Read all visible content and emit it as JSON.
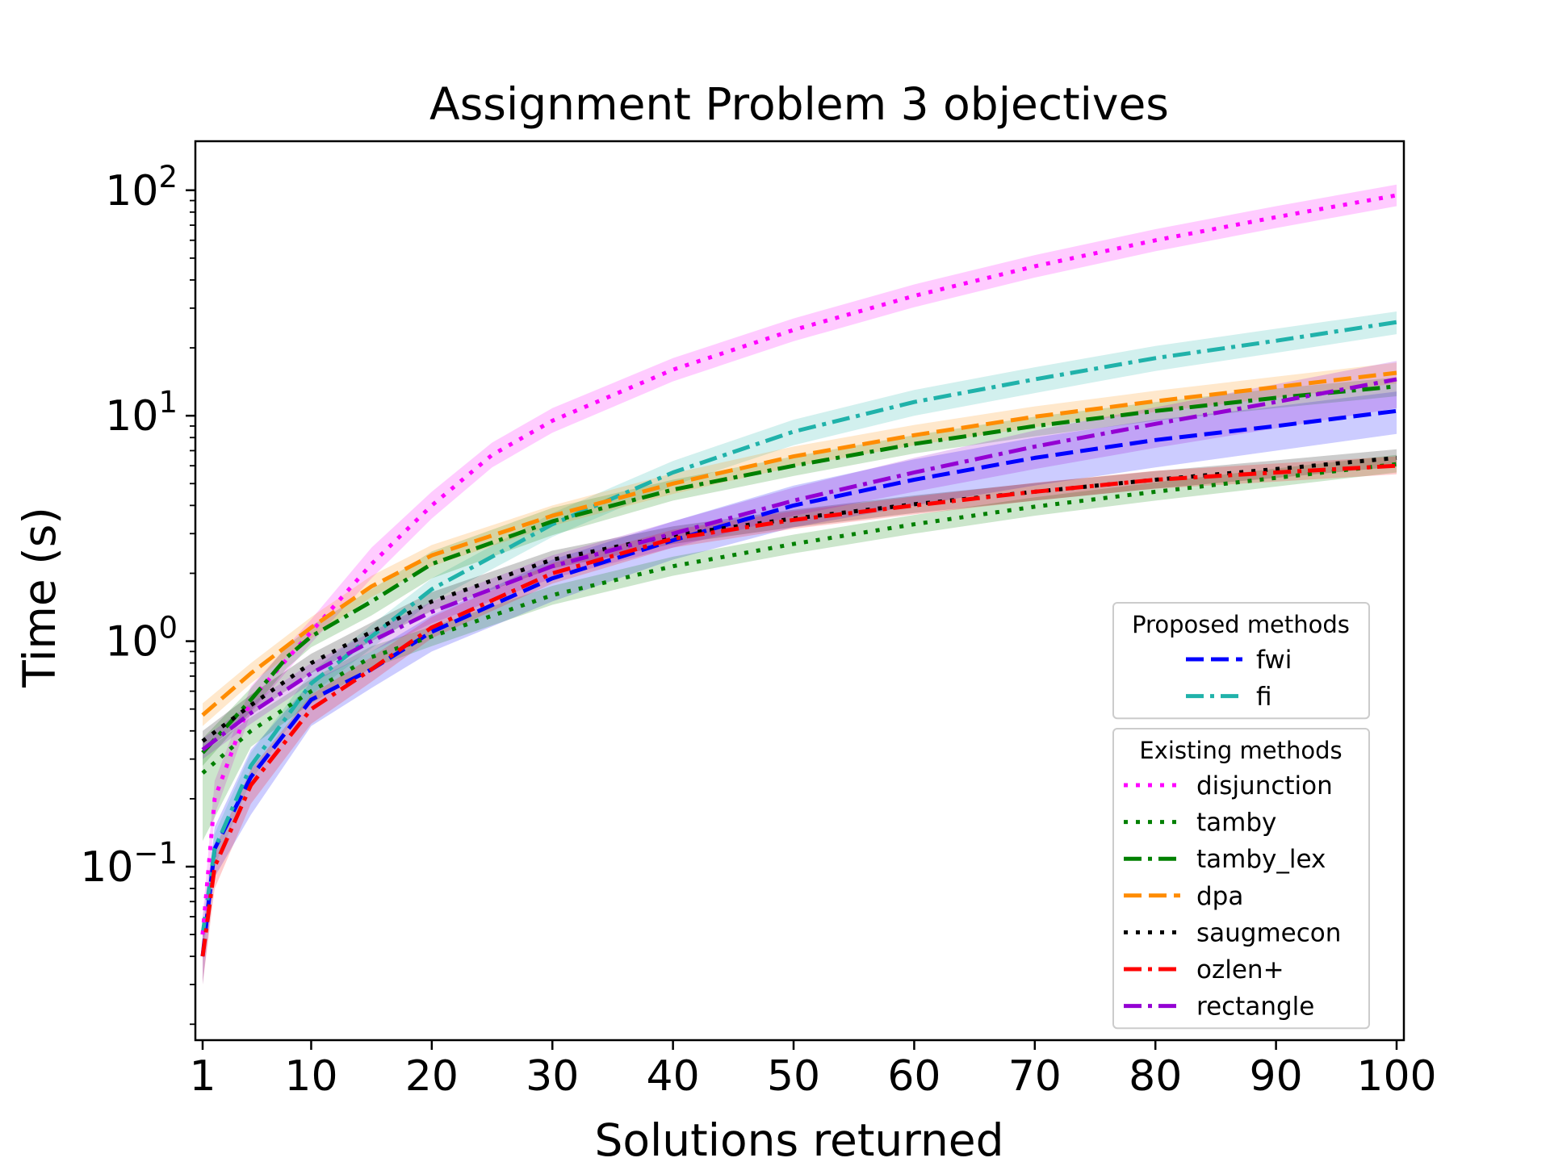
{
  "chart_data": {
    "type": "line",
    "title": "Assignment Problem 3 objectives",
    "xlabel": "Solutions returned",
    "ylabel": "Time (s)",
    "yscale": "log",
    "xlim": [
      1,
      100
    ],
    "ylim": [
      0.017,
      165
    ],
    "x_ticks": [
      1,
      10,
      20,
      30,
      40,
      50,
      60,
      70,
      80,
      90,
      100
    ],
    "x_tick_labels": [
      "1",
      "10",
      "20",
      "30",
      "40",
      "50",
      "60",
      "70",
      "80",
      "90",
      "100"
    ],
    "y_ticks": [
      0.1,
      1,
      10,
      100
    ],
    "y_tick_labels": [
      {
        "base": "10",
        "exp": "−1"
      },
      {
        "base": "10",
        "exp": "0"
      },
      {
        "base": "10",
        "exp": "1"
      },
      {
        "base": "10",
        "exp": "2"
      }
    ],
    "grid": false,
    "legend_placement": "lower-right",
    "legend_groups": [
      {
        "title": "Proposed methods",
        "series": [
          "fwi",
          "fi"
        ]
      },
      {
        "title": "Existing methods",
        "series": [
          "disjunction",
          "tamby",
          "tamby_lex",
          "dpa",
          "saugmecon",
          "ozlen+",
          "rectangle"
        ]
      }
    ],
    "series": [
      {
        "name": "fwi",
        "color": "#0000ff",
        "style": "dashed",
        "x": [
          1,
          2,
          5,
          10,
          15,
          20,
          30,
          40,
          50,
          60,
          70,
          80,
          90,
          100
        ],
        "y": [
          0.04,
          0.12,
          0.25,
          0.55,
          0.75,
          1.1,
          1.9,
          2.8,
          4.0,
          5.2,
          6.5,
          7.8,
          9.0,
          10.5
        ],
        "band_low": [
          0.03,
          0.09,
          0.17,
          0.42,
          0.62,
          0.9,
          1.5,
          2.3,
          3.2,
          4.0,
          4.9,
          5.9,
          7.0,
          8.3
        ],
        "band_high": [
          0.05,
          0.15,
          0.33,
          0.66,
          0.9,
          1.3,
          2.3,
          3.4,
          4.9,
          6.4,
          8.0,
          9.6,
          11.0,
          12.8
        ]
      },
      {
        "name": "fi",
        "color": "#20b2aa",
        "style": "dashdot",
        "x": [
          1,
          2,
          5,
          10,
          15,
          20,
          30,
          40,
          50,
          60,
          70,
          80,
          90,
          100
        ],
        "y": [
          0.05,
          0.12,
          0.28,
          0.65,
          1.05,
          1.7,
          3.3,
          5.6,
          8.5,
          11.5,
          14.5,
          18.0,
          21.5,
          26.0
        ],
        "band_low": [
          0.04,
          0.1,
          0.24,
          0.58,
          0.93,
          1.5,
          2.9,
          4.9,
          7.4,
          10.0,
          12.6,
          15.8,
          19.0,
          23.0
        ],
        "band_high": [
          0.06,
          0.14,
          0.32,
          0.73,
          1.18,
          1.9,
          3.7,
          6.3,
          9.6,
          13.0,
          16.4,
          20.4,
          24.3,
          29.0
        ]
      },
      {
        "name": "disjunction",
        "color": "#ff00ff",
        "style": "dotted",
        "x": [
          1,
          2,
          5,
          10,
          15,
          20,
          25,
          30,
          40,
          50,
          60,
          70,
          80,
          90,
          100
        ],
        "y": [
          0.05,
          0.2,
          0.55,
          1.1,
          2.2,
          4.0,
          6.7,
          9.5,
          16.0,
          24.0,
          34.0,
          46.0,
          60.0,
          76.0,
          95.0
        ],
        "band_low": [
          0.04,
          0.17,
          0.48,
          0.98,
          1.9,
          3.5,
          5.9,
          8.4,
          14.2,
          21.4,
          30.3,
          41.0,
          53.6,
          68.0,
          85.0
        ],
        "band_high": [
          0.06,
          0.24,
          0.63,
          1.25,
          2.6,
          4.6,
          7.6,
          10.8,
          18.0,
          27.0,
          38.2,
          51.6,
          67.2,
          85.0,
          106.0
        ]
      },
      {
        "name": "tamby",
        "color": "#008000",
        "style": "dotted",
        "x": [
          1,
          5,
          10,
          15,
          20,
          30,
          40,
          50,
          60,
          70,
          80,
          90,
          100
        ],
        "y": [
          0.26,
          0.4,
          0.6,
          0.85,
          1.05,
          1.6,
          2.15,
          2.7,
          3.3,
          3.95,
          4.6,
          5.3,
          6.1
        ],
        "band_low": [
          0.13,
          0.34,
          0.53,
          0.76,
          0.95,
          1.45,
          1.95,
          2.45,
          3.0,
          3.6,
          4.2,
          4.85,
          5.6
        ],
        "band_high": [
          0.32,
          0.46,
          0.68,
          0.95,
          1.16,
          1.76,
          2.37,
          2.97,
          3.63,
          4.35,
          5.06,
          5.83,
          6.7
        ]
      },
      {
        "name": "tamby_lex",
        "color": "#008000",
        "style": "dashdot",
        "x": [
          1,
          5,
          8,
          10,
          15,
          20,
          30,
          40,
          50,
          60,
          70,
          80,
          90,
          100
        ],
        "y": [
          0.32,
          0.55,
          0.85,
          1.05,
          1.5,
          2.2,
          3.4,
          4.7,
          6.0,
          7.5,
          9.0,
          10.5,
          12.0,
          13.5
        ],
        "band_low": [
          0.28,
          0.49,
          0.76,
          0.94,
          1.3,
          1.9,
          2.95,
          4.2,
          5.4,
          6.8,
          8.1,
          9.5,
          10.8,
          12.2
        ],
        "band_high": [
          0.37,
          0.62,
          0.95,
          1.17,
          1.7,
          2.5,
          3.9,
          5.2,
          6.6,
          8.2,
          9.9,
          11.5,
          13.2,
          14.8
        ]
      },
      {
        "name": "dpa",
        "color": "#ff8c00",
        "style": "dashed",
        "x": [
          1,
          5,
          10,
          15,
          20,
          30,
          40,
          50,
          60,
          70,
          80,
          90,
          100
        ],
        "y": [
          0.47,
          0.72,
          1.15,
          1.75,
          2.4,
          3.6,
          5.0,
          6.6,
          8.2,
          9.9,
          11.6,
          13.4,
          15.5
        ],
        "band_low": [
          0.42,
          0.65,
          1.03,
          1.57,
          2.15,
          3.25,
          4.5,
          5.95,
          7.4,
          8.9,
          10.4,
          12.0,
          13.9
        ],
        "band_high": [
          0.53,
          0.8,
          1.28,
          1.95,
          2.67,
          4.0,
          5.55,
          7.3,
          9.1,
          11.0,
          12.9,
          14.9,
          17.2
        ]
      },
      {
        "name": "saugmecon",
        "color": "#000000",
        "style": "dotted",
        "x": [
          1,
          5,
          10,
          15,
          20,
          30,
          40,
          50,
          60,
          70,
          80,
          90,
          100
        ],
        "y": [
          0.36,
          0.52,
          0.8,
          1.1,
          1.5,
          2.3,
          2.95,
          3.5,
          4.05,
          4.6,
          5.2,
          5.8,
          6.5
        ],
        "band_low": [
          0.32,
          0.47,
          0.72,
          1.0,
          1.36,
          2.1,
          2.7,
          3.2,
          3.7,
          4.2,
          4.75,
          5.3,
          5.95
        ],
        "band_high": [
          0.4,
          0.58,
          0.88,
          1.21,
          1.65,
          2.52,
          3.23,
          3.83,
          4.43,
          5.03,
          5.68,
          6.34,
          7.1
        ]
      },
      {
        "name": "ozlen+",
        "color": "#ff0000",
        "style": "dashdot",
        "x": [
          1,
          2,
          5,
          10,
          15,
          20,
          30,
          40,
          50,
          60,
          70,
          80,
          90,
          100
        ],
        "y": [
          0.04,
          0.1,
          0.23,
          0.5,
          0.75,
          1.15,
          2.0,
          2.85,
          3.45,
          4.0,
          4.6,
          5.2,
          5.6,
          6.0
        ],
        "band_low": [
          0.03,
          0.08,
          0.19,
          0.43,
          0.66,
          1.03,
          1.8,
          2.6,
          3.15,
          3.65,
          4.2,
          4.75,
          5.1,
          5.5
        ],
        "band_high": [
          0.05,
          0.12,
          0.27,
          0.58,
          0.85,
          1.28,
          2.22,
          3.12,
          3.78,
          4.38,
          5.04,
          5.7,
          6.14,
          6.6
        ]
      },
      {
        "name": "rectangle",
        "color": "#9400d3",
        "style": "dashdot",
        "x": [
          1,
          5,
          10,
          15,
          20,
          30,
          40,
          50,
          60,
          70,
          80,
          90,
          100
        ],
        "y": [
          0.33,
          0.48,
          0.72,
          1.0,
          1.35,
          2.15,
          3.0,
          4.2,
          5.6,
          7.3,
          9.2,
          11.5,
          14.5
        ],
        "band_low": [
          0.3,
          0.43,
          0.65,
          0.9,
          1.2,
          1.9,
          2.6,
          3.6,
          4.6,
          5.8,
          7.2,
          8.8,
          10.8
        ],
        "band_high": [
          0.37,
          0.53,
          0.8,
          1.1,
          1.5,
          2.4,
          3.4,
          4.8,
          6.5,
          8.6,
          10.9,
          13.8,
          17.5
        ]
      }
    ]
  }
}
